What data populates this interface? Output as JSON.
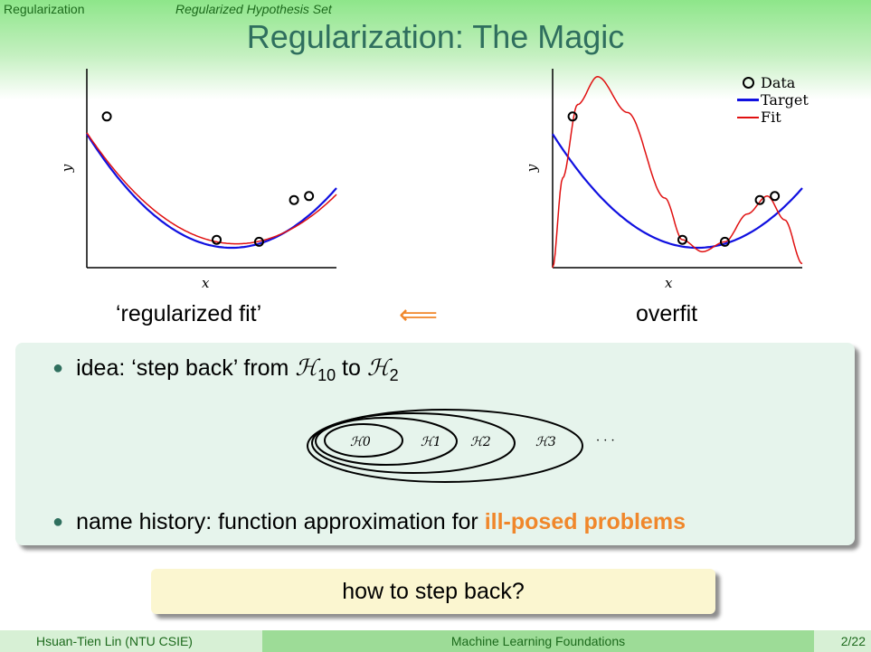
{
  "header": {
    "section": "Regularization",
    "subsection": "Regularized Hypothesis Set",
    "title": "Regularization: The Magic"
  },
  "plots": {
    "left": {
      "xlabel": "x",
      "ylabel": "y",
      "caption": "‘regularized fit’"
    },
    "right": {
      "xlabel": "x",
      "ylabel": "y",
      "caption": "overfit"
    },
    "arrow": "⟸",
    "legend": {
      "data": "Data",
      "target": "Target",
      "fit": "Fit"
    },
    "colors": {
      "target": "#1010e0",
      "fit": "#e01010"
    }
  },
  "chart_data": [
    {
      "type": "scatter",
      "title": "",
      "xlabel": "x",
      "ylabel": "y",
      "series": [
        {
          "name": "Data",
          "x": [
            0.08,
            0.52,
            0.69,
            0.83,
            0.89
          ],
          "y": [
            0.76,
            0.14,
            0.13,
            0.34,
            0.36
          ]
        },
        {
          "name": "Target",
          "curve": "quadratic"
        },
        {
          "name": "Fit",
          "curve": "regularized fit close to target"
        }
      ]
    },
    {
      "type": "scatter",
      "title": "",
      "xlabel": "x",
      "ylabel": "y",
      "series": [
        {
          "name": "Data",
          "x": [
            0.08,
            0.52,
            0.69,
            0.83,
            0.89
          ],
          "y": [
            0.76,
            0.14,
            0.13,
            0.34,
            0.36
          ]
        },
        {
          "name": "Target",
          "curve": "quadratic"
        },
        {
          "name": "Fit",
          "curve": "high-degree overfit"
        }
      ]
    }
  ],
  "content": {
    "bullet1": {
      "prefix": "idea: ‘step back’ from ",
      "h10": "ℋ",
      "h10_sub": "10",
      "to": " to ",
      "h2": "ℋ",
      "h2_sub": "2"
    },
    "nested_sets": [
      "ℋ0",
      "ℋ1",
      "ℋ2",
      "ℋ3",
      "· · ·"
    ],
    "bullet2": {
      "prefix": "name history: function approximation for ",
      "highlight": "ill-posed problems"
    },
    "question": "how to step back?"
  },
  "footer": {
    "author": "Hsuan-Tien Lin  (NTU CSIE)",
    "course": "Machine Learning Foundations",
    "page": "2/22"
  }
}
